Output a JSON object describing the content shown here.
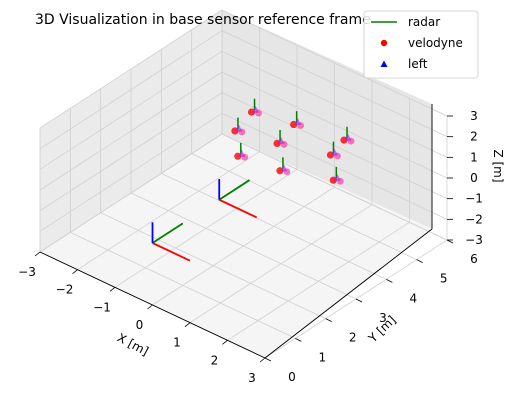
{
  "chart_data": {
    "type": "scatter",
    "title": "3D Visualization in base sensor reference frame",
    "xlabel": "X [m]",
    "ylabel": "Y [m]",
    "zlabel": "Z [m]",
    "xlim": [
      -3,
      3
    ],
    "ylim": [
      0,
      6
    ],
    "zlim": [
      -3,
      3
    ],
    "x_ticks": [
      "−3",
      "−2",
      "−1",
      "0",
      "1",
      "2",
      "3"
    ],
    "y_ticks": [
      "0",
      "1",
      "2",
      "3",
      "4",
      "5",
      "6"
    ],
    "z_ticks": [
      "−3",
      "−2",
      "−1",
      "0",
      "1",
      "2",
      "3"
    ],
    "grid": true,
    "legend": {
      "placement": "top-right",
      "entries": [
        {
          "label": "radar",
          "marker": "line",
          "color": "#008000"
        },
        {
          "label": "velodyne",
          "marker": "circle",
          "color": "#ff0000"
        },
        {
          "label": "left",
          "marker": "triangle",
          "color": "#0000ff"
        }
      ]
    },
    "frames": [
      {
        "name": "base",
        "origin": [
          0,
          0,
          0
        ],
        "length": 1.0
      },
      {
        "name": "sensor",
        "origin": [
          0,
          2.2,
          0
        ],
        "length": 1.0
      }
    ],
    "series": [
      {
        "name": "radar",
        "color": "#008000",
        "points": [
          [
            -1.0,
            4.6,
            1.2
          ],
          [
            -0.2,
            5.0,
            0.9
          ],
          [
            0.9,
            5.3,
            0.8
          ],
          [
            -1.2,
            4.3,
            0.4
          ],
          [
            -0.4,
            4.7,
            0.1
          ],
          [
            0.7,
            5.1,
            0.1
          ],
          [
            -0.8,
            3.9,
            -0.1
          ],
          [
            0.0,
            4.3,
            -0.5
          ],
          [
            1.1,
            4.7,
            -0.4
          ]
        ]
      },
      {
        "name": "velodyne",
        "color": "#ff0000",
        "points": [
          [
            -1.0,
            4.6,
            1.2
          ],
          [
            -0.2,
            5.0,
            0.9
          ],
          [
            0.9,
            5.3,
            0.8
          ],
          [
            -1.2,
            4.3,
            0.4
          ],
          [
            -0.4,
            4.7,
            0.1
          ],
          [
            0.7,
            5.1,
            0.1
          ],
          [
            -0.8,
            3.9,
            -0.1
          ],
          [
            0.0,
            4.3,
            -0.5
          ],
          [
            1.1,
            4.7,
            -0.4
          ]
        ]
      },
      {
        "name": "left",
        "color": "#0000ff",
        "points": [
          [
            -1.0,
            4.6,
            1.2
          ],
          [
            -0.2,
            5.0,
            0.9
          ],
          [
            0.9,
            5.3,
            0.8
          ],
          [
            -1.2,
            4.3,
            0.4
          ],
          [
            -0.4,
            4.7,
            0.1
          ],
          [
            0.7,
            5.1,
            0.1
          ],
          [
            -0.8,
            3.9,
            -0.1
          ],
          [
            0.0,
            4.3,
            -0.5
          ],
          [
            1.1,
            4.7,
            -0.4
          ]
        ]
      }
    ]
  }
}
